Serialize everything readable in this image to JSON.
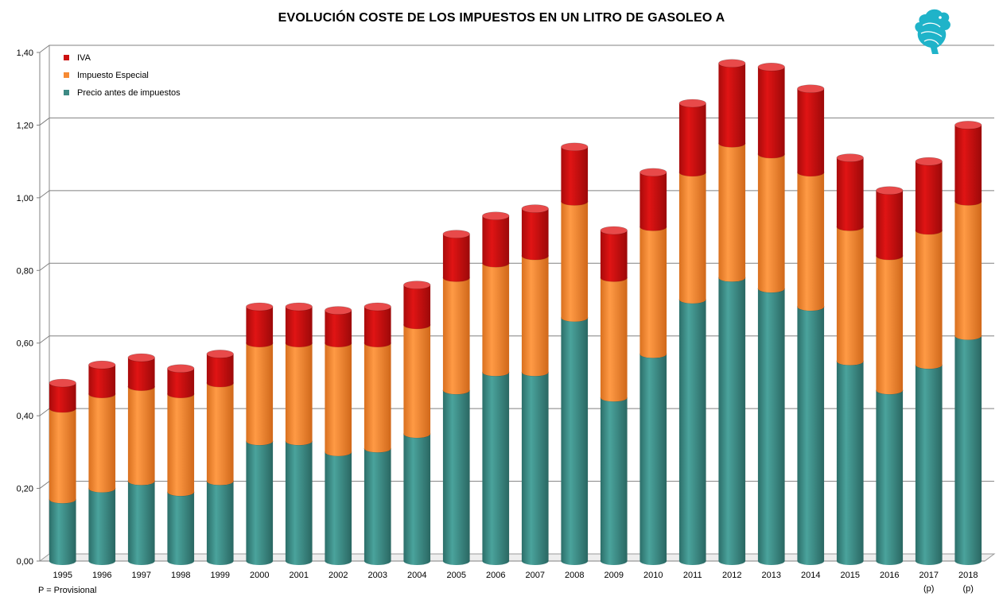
{
  "chart_data": {
    "type": "bar",
    "stacked": true,
    "title": "EVOLUCIÓN COSTE DE LOS IMPUESTOS EN UN LITRO DE GASOLEO A",
    "xlabel": "",
    "ylabel": "",
    "ylim": [
      0,
      1.4
    ],
    "yticks": [
      "0,00",
      "0,20",
      "0,40",
      "0,60",
      "0,80",
      "1,00",
      "1,20",
      "1,40"
    ],
    "grid": true,
    "legend_position": "top-left",
    "categories": [
      "1995",
      "1996",
      "1997",
      "1998",
      "1999",
      "2000",
      "2001",
      "2002",
      "2003",
      "2004",
      "2005",
      "2006",
      "2007",
      "2008",
      "2009",
      "2010",
      "2011",
      "2012",
      "2013",
      "2014",
      "2015",
      "2016",
      "2017",
      "2018"
    ],
    "category_notes": [
      "",
      "",
      "",
      "",
      "",
      "",
      "",
      "",
      "",
      "",
      "",
      "",
      "",
      "",
      "",
      "",
      "",
      "",
      "",
      "",
      "",
      "",
      "(p)",
      "(p)"
    ],
    "series": [
      {
        "name": "Precio antes de impuestos",
        "color": "#3e8a84",
        "values": [
          0.17,
          0.2,
          0.22,
          0.19,
          0.22,
          0.33,
          0.33,
          0.3,
          0.31,
          0.35,
          0.47,
          0.52,
          0.52,
          0.67,
          0.45,
          0.57,
          0.72,
          0.78,
          0.75,
          0.7,
          0.55,
          0.47,
          0.54,
          0.62
        ]
      },
      {
        "name": "Impuesto Especial",
        "color": "#f68a33",
        "values": [
          0.25,
          0.26,
          0.26,
          0.27,
          0.27,
          0.27,
          0.27,
          0.3,
          0.29,
          0.3,
          0.31,
          0.3,
          0.32,
          0.32,
          0.33,
          0.35,
          0.35,
          0.37,
          0.37,
          0.37,
          0.37,
          0.37,
          0.37,
          0.37
        ]
      },
      {
        "name": "IVA",
        "color": "#cc1010",
        "values": [
          0.07,
          0.08,
          0.08,
          0.07,
          0.08,
          0.1,
          0.1,
          0.09,
          0.1,
          0.11,
          0.12,
          0.13,
          0.13,
          0.15,
          0.13,
          0.15,
          0.19,
          0.22,
          0.24,
          0.23,
          0.19,
          0.18,
          0.19,
          0.21
        ]
      }
    ],
    "legend_order": [
      "IVA",
      "Impuesto Especial",
      "Precio antes de impuestos"
    ],
    "footnote": "P = Provisional"
  },
  "logo": {
    "name": "griffin-logo",
    "color": "#1fb3c9"
  }
}
